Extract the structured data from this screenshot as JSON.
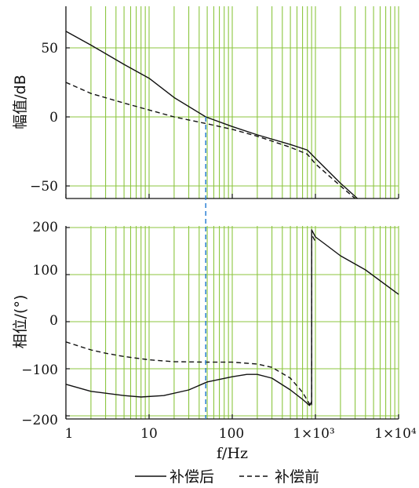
{
  "chart_data": {
    "type": "line",
    "xlabel": "f/Hz",
    "xscale": "log",
    "xlim": [
      1,
      10000
    ],
    "xticks": [
      1,
      10,
      100,
      1000,
      10000
    ],
    "xtick_labels": [
      "1",
      "10",
      "100",
      "1×10³",
      "1×10⁴"
    ],
    "grid": true,
    "grid_color": "#8cc63f",
    "series_colors": {
      "after": "#111111",
      "before": "#111111",
      "marker": "#2a7fd4"
    },
    "legend": {
      "placement": "bottom-center",
      "after": "补偿后",
      "before": "补偿前"
    },
    "crossover_frequency": 48,
    "panels": [
      {
        "id": "magnitude",
        "ylabel": "幅值/dB",
        "ylim": [
          -60,
          80
        ],
        "yticks": [
          50,
          0,
          -50
        ],
        "ytick_labels": [
          "50",
          "0",
          "−50"
        ],
        "series": [
          {
            "name": "补偿后",
            "style": "solid",
            "x": [
              1,
              2,
              5,
              10,
              20,
              48,
              100,
              200,
              500,
              800,
              1000,
              2000,
              3200
            ],
            "y": [
              62,
              52,
              38,
              28,
              14,
              0,
              -7,
              -13,
              -20,
              -24,
              -30,
              -48,
              -60
            ]
          },
          {
            "name": "补偿前",
            "style": "dashed",
            "x": [
              1,
              2,
              5,
              10,
              20,
              50,
              100,
              200,
              500,
              800,
              1000,
              2000,
              3000
            ],
            "y": [
              25,
              17,
              10,
              5,
              0,
              -5,
              -9,
              -14,
              -22,
              -27,
              -34,
              -50,
              -60
            ]
          }
        ]
      },
      {
        "id": "phase",
        "ylabel": "相位/(°)",
        "ylim": [
          -200,
          200
        ],
        "yticks": [
          200,
          100,
          0,
          -100,
          -200
        ],
        "ytick_labels": [
          "200",
          "100",
          "0",
          "−100",
          "−200"
        ],
        "series": [
          {
            "name": "补偿后",
            "style": "solid",
            "x": [
              1,
              2,
              5,
              8,
              15,
              30,
              50,
              100,
              150,
              200,
              300,
              500,
              700,
              850,
              900,
              901,
              1000,
              1300,
              2000,
              4000,
              10000
            ],
            "y": [
              -133,
              -148,
              -157,
              -160,
              -157,
              -145,
              -128,
              -117,
              -112,
              -112,
              -120,
              -145,
              -165,
              -178,
              -170,
              195,
              180,
              165,
              140,
              110,
              58
            ]
          },
          {
            "name": "补偿前",
            "style": "dashed",
            "x": [
              1,
              1.5,
              2,
              3,
              5,
              10,
              20,
              50,
              100,
              200,
              300,
              500,
              700,
              850,
              900,
              901,
              1000
            ],
            "y": [
              -43,
              -53,
              -60,
              -67,
              -74,
              -81,
              -85,
              -86,
              -86,
              -90,
              -97,
              -120,
              -150,
              -175,
              -180,
              185,
              170
            ]
          }
        ]
      }
    ]
  }
}
